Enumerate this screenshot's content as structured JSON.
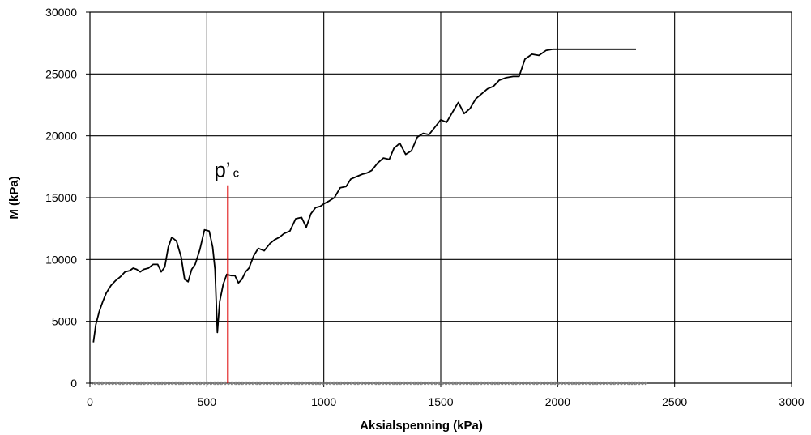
{
  "chart_data": {
    "type": "line",
    "xlabel": "Aksialspenning (kPa)",
    "ylabel": "M (kPa)",
    "xlim": [
      0,
      3000
    ],
    "ylim": [
      0,
      30000
    ],
    "xticks": [
      0,
      500,
      1000,
      1500,
      2000,
      2500,
      3000
    ],
    "yticks": [
      0,
      5000,
      10000,
      15000,
      20000,
      25000,
      30000
    ],
    "grid": true,
    "series": [
      {
        "color": "#000000",
        "x": [
          15,
          25,
          40,
          55,
          70,
          90,
          110,
          130,
          150,
          170,
          185,
          200,
          215,
          230,
          250,
          270,
          290,
          305,
          320,
          335,
          350,
          370,
          390,
          405,
          420,
          435,
          450,
          470,
          490,
          510,
          525,
          535,
          545,
          555,
          570,
          585,
          605,
          620,
          635,
          650,
          665,
          680,
          700,
          720,
          745,
          770,
          790,
          810,
          830,
          855,
          880,
          905,
          925,
          945,
          965,
          985,
          1000,
          1020,
          1045,
          1070,
          1095,
          1115,
          1140,
          1165,
          1185,
          1205,
          1230,
          1255,
          1280,
          1300,
          1325,
          1350,
          1375,
          1400,
          1425,
          1450,
          1475,
          1500,
          1525,
          1550,
          1575,
          1600,
          1625,
          1650,
          1675,
          1700,
          1725,
          1750,
          1780,
          1810,
          1835,
          1860,
          1890,
          1920,
          1950,
          1980,
          2010,
          2040,
          2070,
          2100,
          2130,
          2160,
          2190,
          2220,
          2250,
          2280,
          2310,
          2335
        ],
        "y": [
          3300,
          4700,
          5800,
          6600,
          7300,
          7900,
          8300,
          8600,
          9000,
          9100,
          9300,
          9200,
          9000,
          9200,
          9300,
          9600,
          9600,
          9000,
          9400,
          11000,
          11800,
          11500,
          10200,
          8400,
          8200,
          9200,
          9600,
          10800,
          12400,
          12300,
          11000,
          9200,
          4100,
          6600,
          8000,
          8800,
          8700,
          8700,
          8100,
          8400,
          9000,
          9300,
          10300,
          10900,
          10700,
          11300,
          11600,
          11800,
          12100,
          12300,
          13300,
          13400,
          12600,
          13700,
          14200,
          14300,
          14500,
          14700,
          15000,
          15800,
          15900,
          16500,
          16700,
          16900,
          17000,
          17200,
          17800,
          18200,
          18100,
          19000,
          19400,
          18500,
          18800,
          19900,
          20200,
          20100,
          20700,
          21300,
          21100,
          21900,
          22700,
          21800,
          22200,
          23000,
          23400,
          23800,
          24000,
          24500,
          24700,
          24800,
          24800,
          26200,
          26600,
          26500,
          26900,
          27000,
          27000,
          27000,
          27000,
          27000,
          27000,
          27000,
          27000,
          27000,
          27000,
          27000,
          27000,
          27000
        ],
        "baseline": {
          "x_from": 15,
          "x_to": 2380,
          "y": 0
        }
      }
    ],
    "annotations": [
      {
        "text": "p’",
        "subscript": "c",
        "x": 590,
        "y_from": 0,
        "y_to": 16000,
        "color": "#dd0000"
      }
    ]
  }
}
